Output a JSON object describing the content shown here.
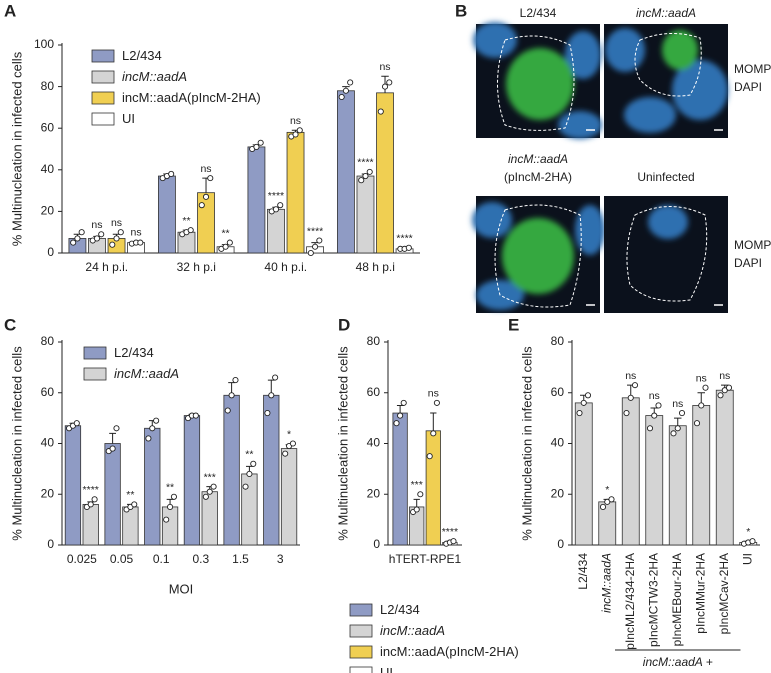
{
  "chart_data": [
    {
      "type": "bar",
      "panel_label": "A",
      "ylabel": "% Multinucleation in infected cells",
      "categories": [
        "24 h p.i.",
        "32 h p.i",
        "40 h p.i.",
        "48 h p.i"
      ],
      "ylim": [
        0,
        100
      ],
      "yticks": [
        0,
        20,
        40,
        60,
        80,
        100
      ],
      "legend": "upper left",
      "series": [
        {
          "name": "L2/434",
          "color": "#8f9bc4",
          "values": [
            7,
            37,
            51,
            78
          ],
          "errors": [
            2,
            1,
            1,
            2
          ],
          "points": [
            [
              5,
              7,
              10
            ],
            [
              36,
              37,
              38
            ],
            [
              50,
              51,
              53
            ],
            [
              75,
              78,
              82
            ]
          ]
        },
        {
          "name": "incM::aadA",
          "color": "#d4d4d4",
          "values": [
            7,
            10,
            21,
            37
          ],
          "errors": [
            1,
            1,
            1,
            1
          ],
          "points": [
            [
              6,
              7,
              9
            ],
            [
              9,
              10,
              11
            ],
            [
              20,
              21,
              23
            ],
            [
              35,
              37,
              39
            ]
          ],
          "annotations": [
            "ns",
            "**",
            "****",
            "****"
          ]
        },
        {
          "name": "incM::aadA(pIncM-2HA)",
          "color": "#f0cf52",
          "values": [
            7,
            29,
            58,
            77
          ],
          "errors": [
            2,
            7,
            1,
            8
          ],
          "points": [
            [
              4,
              7,
              10
            ],
            [
              23,
              27,
              36
            ],
            [
              56,
              57,
              59
            ],
            [
              68,
              80,
              82
            ]
          ],
          "annotations": [
            "ns",
            "ns",
            "ns",
            "ns"
          ]
        },
        {
          "name": "UI",
          "color": "#ffffff",
          "values": [
            5,
            3,
            3,
            2
          ],
          "errors": [
            0.5,
            1,
            2,
            0.5
          ],
          "points": [
            [
              4.5,
              5,
              5
            ],
            [
              2,
              3,
              5
            ],
            [
              0,
              3,
              6
            ],
            [
              2,
              2,
              2.5
            ]
          ],
          "annotations": [
            "ns",
            "**",
            "****",
            "****"
          ]
        }
      ]
    },
    {
      "type": "bar",
      "panel_label": "C",
      "ylabel": "% Multinucleation in infected cells",
      "xlabel": "MOI",
      "categories": [
        "0.025",
        "0.05",
        "0.1",
        "0.3",
        "1.5",
        "3"
      ],
      "ylim": [
        0,
        80
      ],
      "yticks": [
        0,
        20,
        40,
        60,
        80
      ],
      "legend": "upper left",
      "series": [
        {
          "name": "L2/434",
          "color": "#8f9bc4",
          "values": [
            47,
            40,
            46,
            51,
            59,
            59
          ],
          "errors": [
            1,
            4,
            3,
            0.5,
            5,
            6
          ],
          "points": [
            [
              46,
              47,
              48
            ],
            [
              37,
              38,
              46
            ],
            [
              42,
              46,
              49
            ],
            [
              50,
              51,
              51
            ],
            [
              53,
              59,
              65
            ],
            [
              52,
              59,
              66
            ]
          ]
        },
        {
          "name": "incM::aadA",
          "color": "#d4d4d4",
          "values": [
            16,
            15,
            15,
            21,
            28,
            38
          ],
          "errors": [
            1,
            1,
            3,
            2,
            3,
            1.5
          ],
          "points": [
            [
              15,
              16,
              18
            ],
            [
              14,
              15,
              16
            ],
            [
              10,
              15,
              19
            ],
            [
              19,
              21,
              23
            ],
            [
              23,
              28,
              32
            ],
            [
              36,
              39,
              40
            ]
          ],
          "annotations": [
            "****",
            "**",
            "**",
            "***",
            "**",
            "*"
          ]
        }
      ]
    },
    {
      "type": "bar",
      "panel_label": "D",
      "ylabel": "% Multinucleation in infected cells",
      "categories": [
        "hTERT-RPE1"
      ],
      "ylim": [
        0,
        80
      ],
      "yticks": [
        0,
        20,
        40,
        60,
        80
      ],
      "legend": "below",
      "series": [
        {
          "name": "L2/434",
          "color": "#8f9bc4",
          "values": [
            52
          ],
          "errors": [
            3
          ],
          "points": [
            [
              48,
              51,
              56
            ]
          ]
        },
        {
          "name": "incM::aadA",
          "color": "#d4d4d4",
          "values": [
            15
          ],
          "errors": [
            3
          ],
          "points": [
            [
              13,
              14,
              20
            ]
          ],
          "annotations": [
            "***"
          ]
        },
        {
          "name": "incM::aadA(pIncM-2HA)",
          "color": "#f0cf52",
          "values": [
            45
          ],
          "errors": [
            7
          ],
          "points": [
            [
              35,
              44,
              56
            ]
          ],
          "annotations": [
            "ns"
          ]
        },
        {
          "name": "UI",
          "color": "#ffffff",
          "values": [
            1
          ],
          "errors": [
            0.5
          ],
          "points": [
            [
              0.5,
              1,
              1.5
            ]
          ],
          "annotations": [
            "****"
          ]
        }
      ]
    },
    {
      "type": "bar",
      "panel_label": "E",
      "ylabel": "% Multinucleation in infected cells",
      "categories": [
        "L2/434",
        "incM::aadA",
        "pIncML2/434-2HA",
        "pIncMCTW3-2HA",
        "pIncMEBour-2HA",
        "pIncMMur-2HA",
        "pIncMCav-2HA",
        "UI"
      ],
      "xtick_rotation": 90,
      "group_label": "incM::aadA +",
      "ylim": [
        0,
        80
      ],
      "yticks": [
        0,
        20,
        40,
        60,
        80
      ],
      "series": [
        {
          "colors": [
            "#d4d4d4",
            "#d4d4d4",
            "#d4d4d4",
            "#d4d4d4",
            "#d4d4d4",
            "#d4d4d4",
            "#d4d4d4",
            "#ffffff"
          ],
          "values": [
            56,
            17,
            58,
            51,
            47,
            55,
            61,
            1
          ],
          "errors": [
            3,
            1,
            5,
            3,
            3,
            5,
            2,
            0.5
          ],
          "points": [
            [
              52,
              56,
              59
            ],
            [
              15,
              17,
              18
            ],
            [
              52,
              58,
              63
            ],
            [
              46,
              51,
              55
            ],
            [
              44,
              46,
              52
            ],
            [
              48,
              55,
              62
            ],
            [
              59,
              61,
              62
            ],
            [
              0.5,
              1,
              1.5
            ]
          ],
          "annotations": [
            null,
            "*",
            "ns",
            "ns",
            "ns",
            "ns",
            "ns",
            "*"
          ]
        }
      ]
    }
  ],
  "images": {
    "panel_label": "B",
    "cells": [
      {
        "label": [
          "L2/434"
        ]
      },
      {
        "label": [
          "incM::aadA"
        ]
      },
      {
        "label": [
          "incM::aadA",
          "(pIncM-2HA)"
        ]
      },
      {
        "label": [
          "Uninfected"
        ]
      }
    ],
    "stains": [
      {
        "name": "MOMP",
        "color": "#2fb34a"
      },
      {
        "name": "DAPI",
        "color": "#2a9ad8"
      }
    ]
  }
}
